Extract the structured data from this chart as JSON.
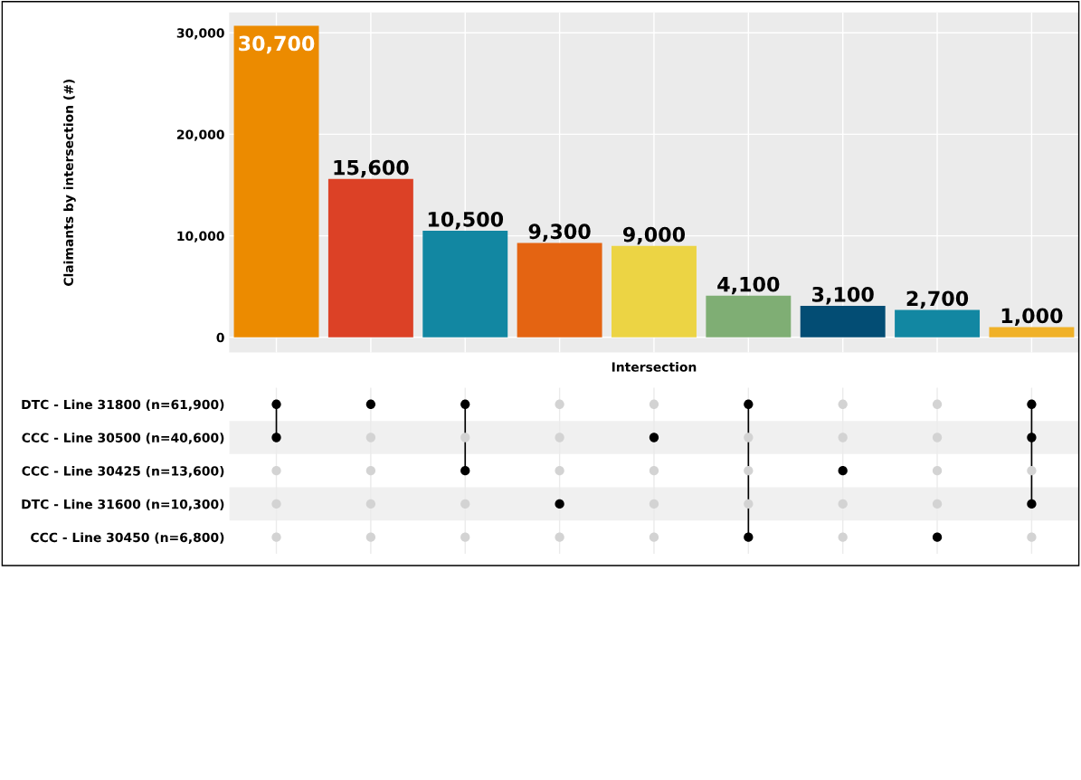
{
  "chart_data": [
    {
      "type": "bar",
      "ylabel": "Claimants by intersection (#)",
      "xlabel": "Intersection",
      "categories": [
        null,
        null,
        null,
        null,
        null,
        null,
        null,
        null,
        null
      ],
      "values": [
        30700,
        15600,
        10500,
        9300,
        9000,
        4100,
        3100,
        2700,
        1000
      ],
      "colors": [
        "#ec8b00",
        "#dc4126",
        "#1287a2",
        "#e46412",
        "#ecd444",
        "#7fae74",
        "#034d74",
        "#1287a2",
        "#f0b128"
      ],
      "ylim": [
        -1500,
        32000
      ],
      "yticks": [
        {
          "value": 0,
          "label": "0"
        },
        {
          "value": 10000,
          "label": "10,000"
        },
        {
          "value": 20000,
          "label": "20,000"
        },
        {
          "value": 30000,
          "label": "30,000"
        }
      ],
      "grid": true,
      "value_labels": [
        "30,700",
        "15,600",
        "10,500",
        "9,300",
        "9,000",
        "4,100",
        "3,100",
        "2,700",
        "1,000"
      ]
    },
    {
      "type": "other",
      "categories": [
        null,
        null,
        null,
        null,
        null,
        null,
        null,
        null,
        null
      ],
      "y_categories": [
        "DTC - Line 31800 (n=61,900)",
        "CCC - Line 30500 (n=40,600)",
        "CCC - Line 30425 (n=13,600)",
        "DTC - Line 31600 (n=10,300)",
        "CCC - Line 30450 (n=6,800)"
      ],
      "cells": [
        [
          true,
          true,
          true,
          false,
          false,
          true,
          false,
          false,
          true
        ],
        [
          true,
          false,
          false,
          false,
          true,
          false,
          false,
          false,
          true
        ],
        [
          false,
          false,
          true,
          false,
          false,
          false,
          true,
          false,
          false
        ],
        [
          false,
          false,
          false,
          true,
          false,
          false,
          false,
          false,
          true
        ],
        [
          false,
          false,
          false,
          false,
          false,
          true,
          false,
          true,
          false
        ]
      ]
    }
  ]
}
